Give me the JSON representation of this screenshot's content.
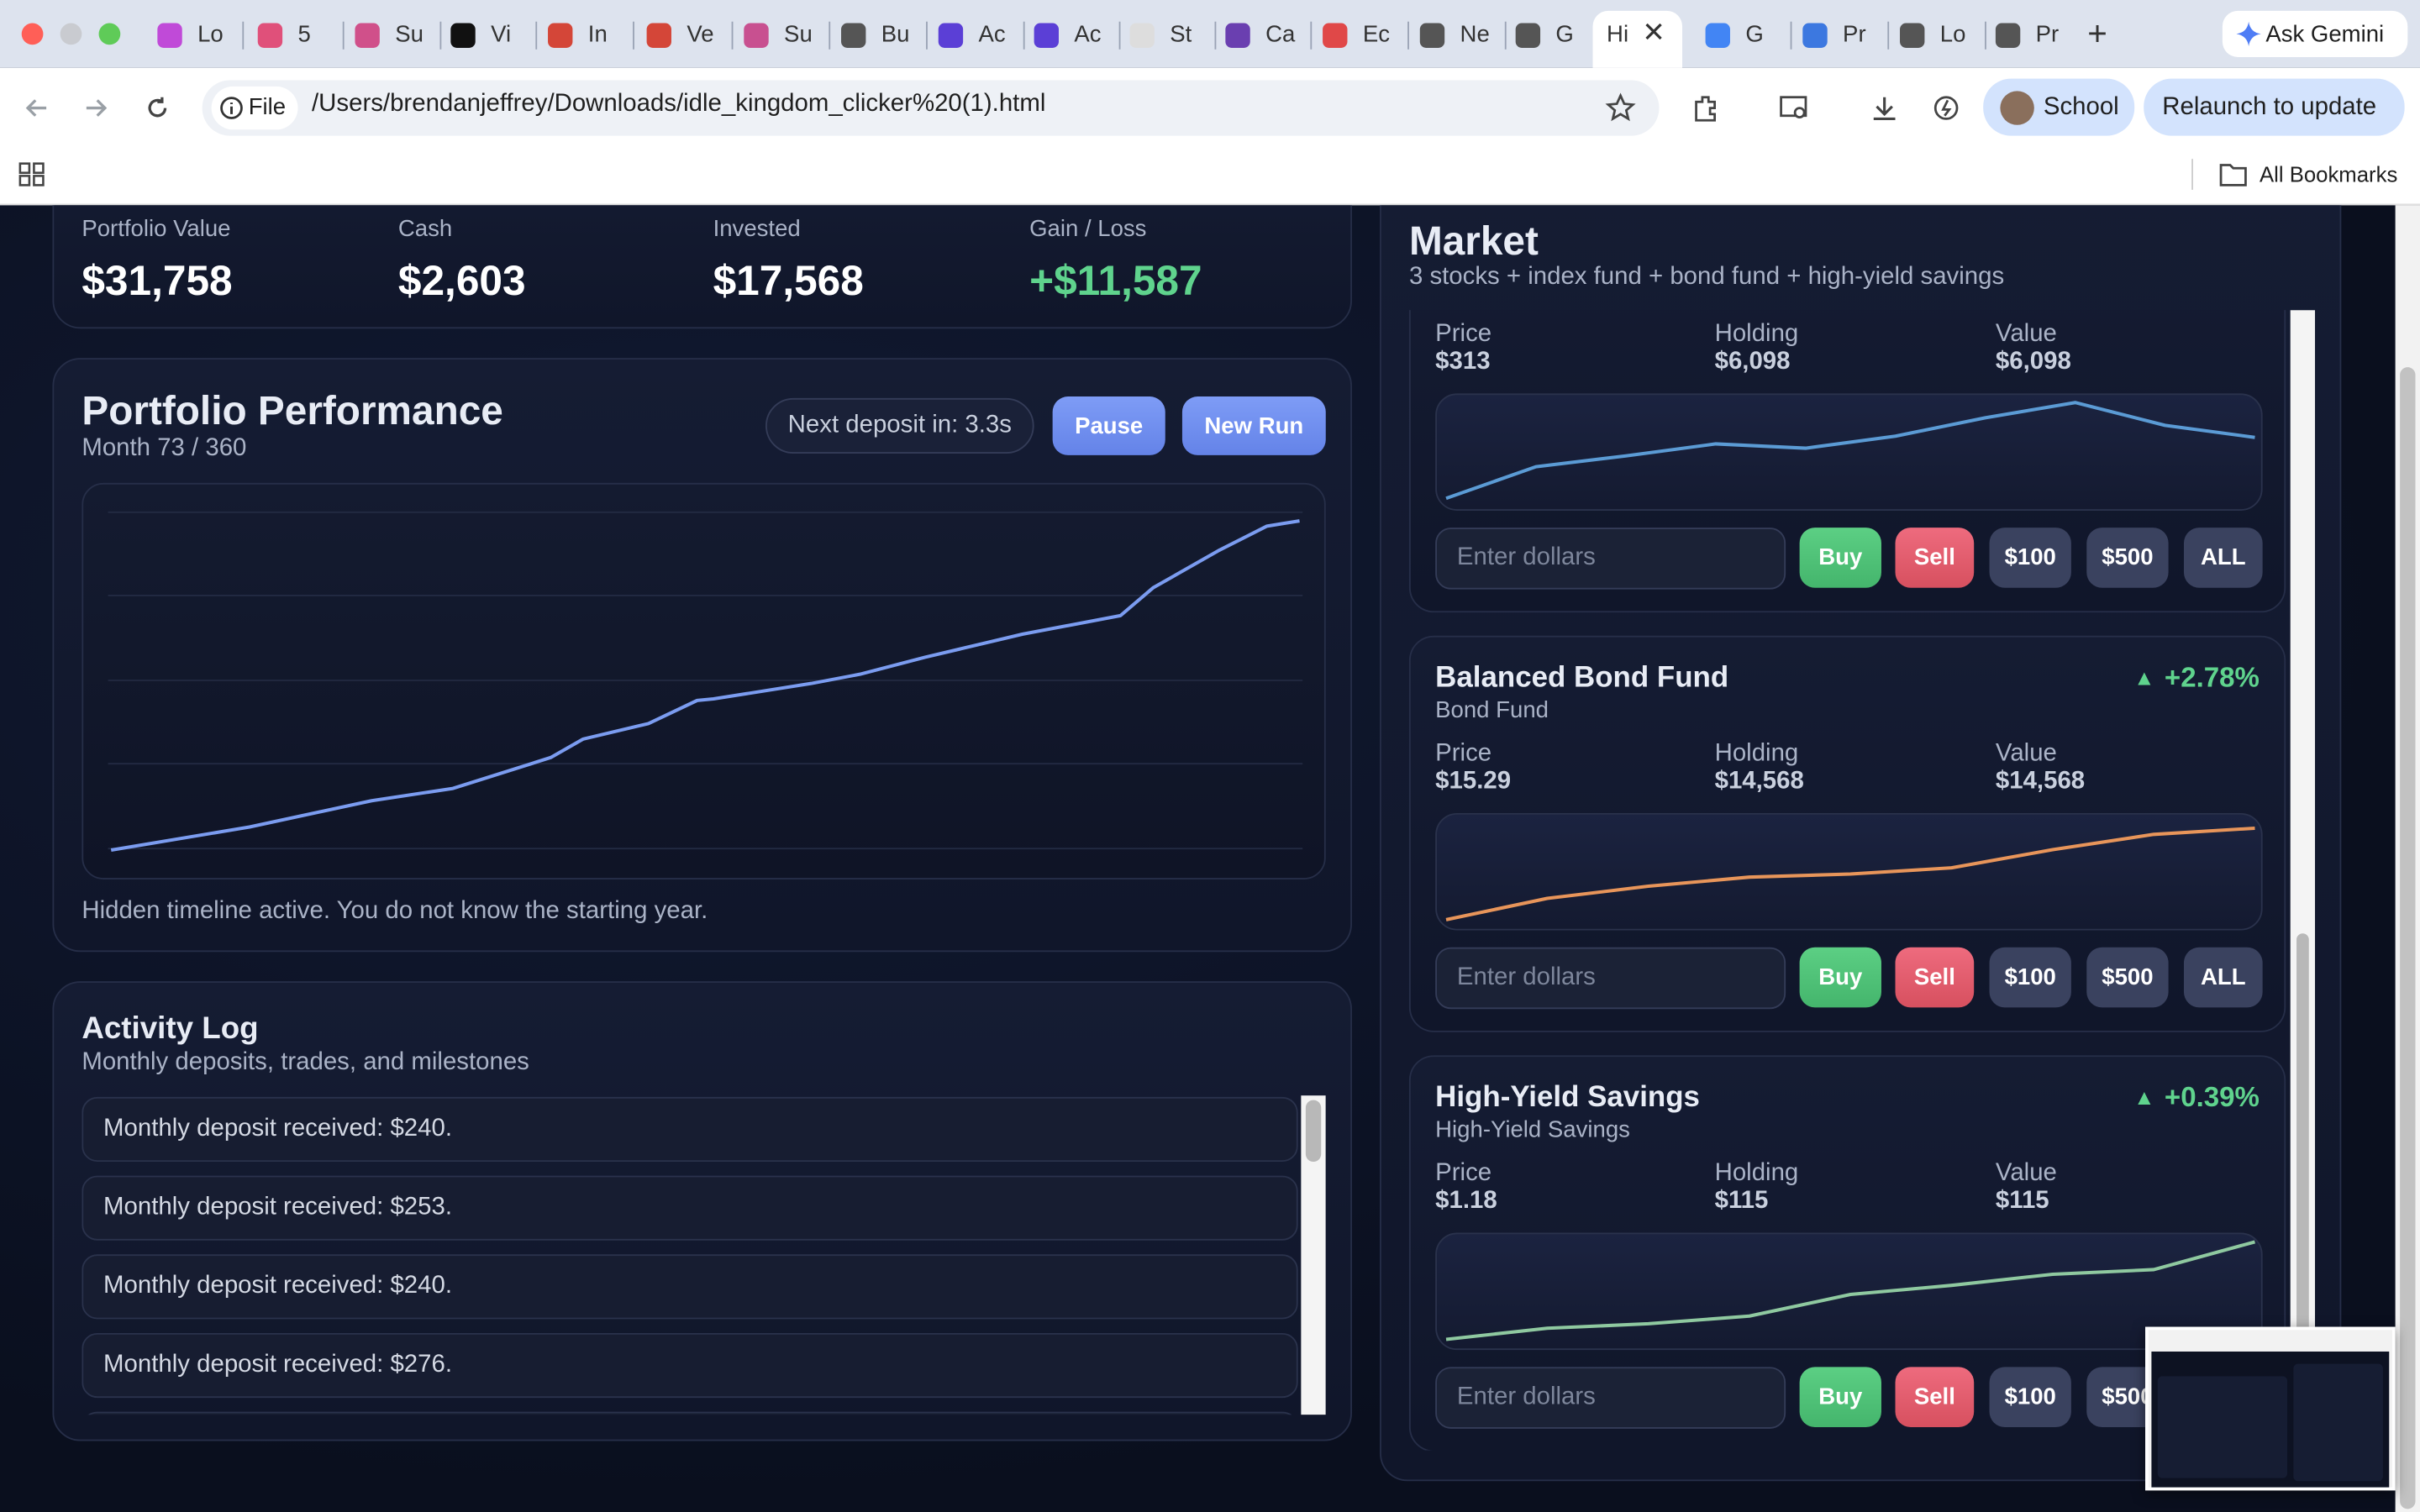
{
  "browser": {
    "tabs": [
      {
        "label": "Lo"
      },
      {
        "label": "5"
      },
      {
        "label": "Su"
      },
      {
        "label": "Vi"
      },
      {
        "label": "In"
      },
      {
        "label": "Ve"
      },
      {
        "label": "Su"
      },
      {
        "label": "Bu"
      },
      {
        "label": "Ac"
      },
      {
        "label": "Ac"
      },
      {
        "label": "St"
      },
      {
        "label": "Ca"
      },
      {
        "label": "Ec"
      },
      {
        "label": "Ne"
      },
      {
        "label": "G"
      },
      {
        "label": "Hi",
        "active": true
      },
      {
        "label": "G"
      },
      {
        "label": "Pr"
      },
      {
        "label": "Lo"
      },
      {
        "label": "Pr"
      }
    ],
    "ask_gemini": "Ask Gemini",
    "url_scheme": "File",
    "url": "/Users/brendanjeffrey/Downloads/idle_kingdom_clicker%20(1).html",
    "profile": "School",
    "relaunch": "Relaunch to update",
    "bookmarks": "All Bookmarks"
  },
  "stats": [
    {
      "label": "Portfolio Value",
      "value": "$31,758"
    },
    {
      "label": "Cash",
      "value": "$2,603"
    },
    {
      "label": "Invested",
      "value": "$17,568"
    },
    {
      "label": "Gain / Loss",
      "value": "+$11,587"
    }
  ],
  "performance": {
    "title": "Portfolio Performance",
    "subtitle": "Month 73 / 360",
    "next_deposit": "Next deposit in: 3.3s",
    "buttons": [
      "Pause",
      "New Run"
    ],
    "chart": {
      "type": "line",
      "color": "#7b9cf0",
      "xlim": [
        0,
        73
      ],
      "ylim": [
        0,
        35000
      ],
      "x": [
        0,
        8.5,
        16,
        21,
        27,
        29,
        33,
        36,
        37,
        43,
        46,
        50,
        56,
        62,
        64,
        68,
        71,
        73
      ],
      "values": [
        2471,
        4529,
        6863,
        7961,
        10706,
        12353,
        13725,
        15784,
        15922,
        17294,
        18118,
        19627,
        21686,
        23333,
        25804,
        29098,
        31294,
        31758
      ]
    },
    "note": "Hidden timeline active. You do not know the starting year."
  },
  "activity": {
    "title": "Activity Log",
    "subtitle": "Monthly deposits, trades, and milestones",
    "entries": [
      "Monthly deposit received: $240.",
      "Monthly deposit received: $253.",
      "Monthly deposit received: $240.",
      "Monthly deposit received: $276."
    ]
  },
  "market": {
    "title": "Market",
    "subtitle": "3 stocks + index fund + bond fund + high-yield savings",
    "labels": {
      "price": "Price",
      "holding": "Holding",
      "value": "Value"
    },
    "input_placeholder": "Enter dollars",
    "buttons": [
      "Buy",
      "Sell",
      "$100",
      "$500",
      "ALL"
    ],
    "assets": [
      {
        "price": "$313",
        "holding": "$6,098",
        "value": "$6,098",
        "chart": {
          "type": "line",
          "color": "#5b9bd5",
          "ylim": [
            200,
            380
          ],
          "values": [
            217,
            267,
            284,
            303,
            296,
            315,
            344,
            368,
            332,
            313
          ]
        }
      },
      {
        "name": "Balanced Bond Fund",
        "kind": "Bond Fund",
        "change": "+2.78%",
        "price": "$15.29",
        "holding": "$14,568",
        "value": "$14,568",
        "chart": {
          "type": "line",
          "color": "#e8955a",
          "ylim": [
            10,
            16
          ],
          "values": [
            10.48,
            11.6,
            12.24,
            12.72,
            12.88,
            13.2,
            14.16,
            14.96,
            15.29
          ]
        }
      },
      {
        "name": "High-Yield Savings",
        "kind": "High-Yield Savings",
        "change": "+0.39%",
        "price": "$1.18",
        "holding": "$115",
        "value": "$115",
        "chart": {
          "type": "line",
          "color": "#8fc9a0",
          "ylim": [
            0.9,
            1.2
          ],
          "values": [
            0.924,
            0.953,
            0.965,
            0.985,
            1.042,
            1.066,
            1.095,
            1.107,
            1.18
          ]
        }
      }
    ]
  }
}
